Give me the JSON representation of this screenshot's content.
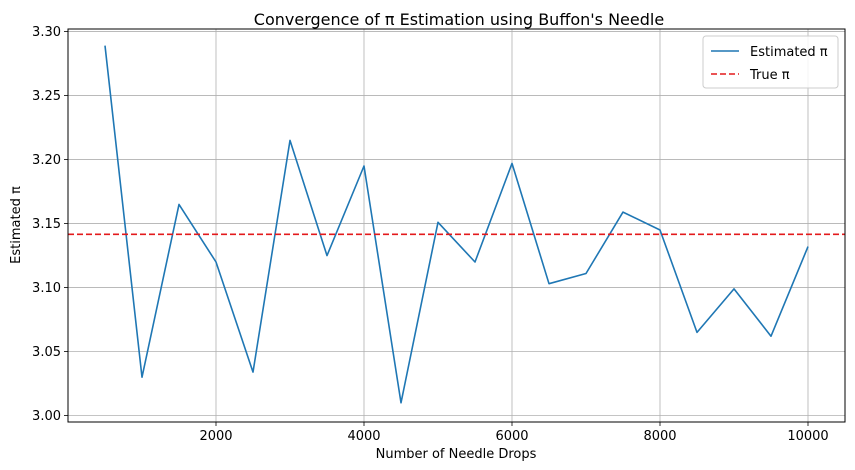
{
  "chart_data": {
    "type": "line",
    "title": "Convergence of π Estimation using Buffon's Needle",
    "xlabel": "Number of Needle Drops",
    "ylabel": "Estimated π",
    "xlim": [
      0,
      10500
    ],
    "ylim": [
      2.995,
      3.302
    ],
    "xticks": [
      2000,
      4000,
      6000,
      8000,
      10000
    ],
    "yticks": [
      3.0,
      3.05,
      3.1,
      3.15,
      3.2,
      3.25,
      3.3
    ],
    "grid": true,
    "legend_position": "top-right",
    "series": [
      {
        "name": "Estimated π",
        "color": "#1f77b4",
        "style": "solid",
        "x": [
          500,
          1000,
          1500,
          2000,
          2500,
          3000,
          3500,
          4000,
          4500,
          5000,
          5500,
          6000,
          6500,
          7000,
          7500,
          8000,
          8500,
          9000,
          9500,
          10000
        ],
        "y": [
          3.289,
          3.03,
          3.165,
          3.12,
          3.034,
          3.215,
          3.125,
          3.195,
          3.01,
          3.151,
          3.12,
          3.197,
          3.103,
          3.111,
          3.159,
          3.145,
          3.065,
          3.099,
          3.062,
          3.132
        ]
      },
      {
        "name": "True π",
        "color": "#e31a1c",
        "style": "dashed",
        "value": 3.14159
      }
    ]
  }
}
